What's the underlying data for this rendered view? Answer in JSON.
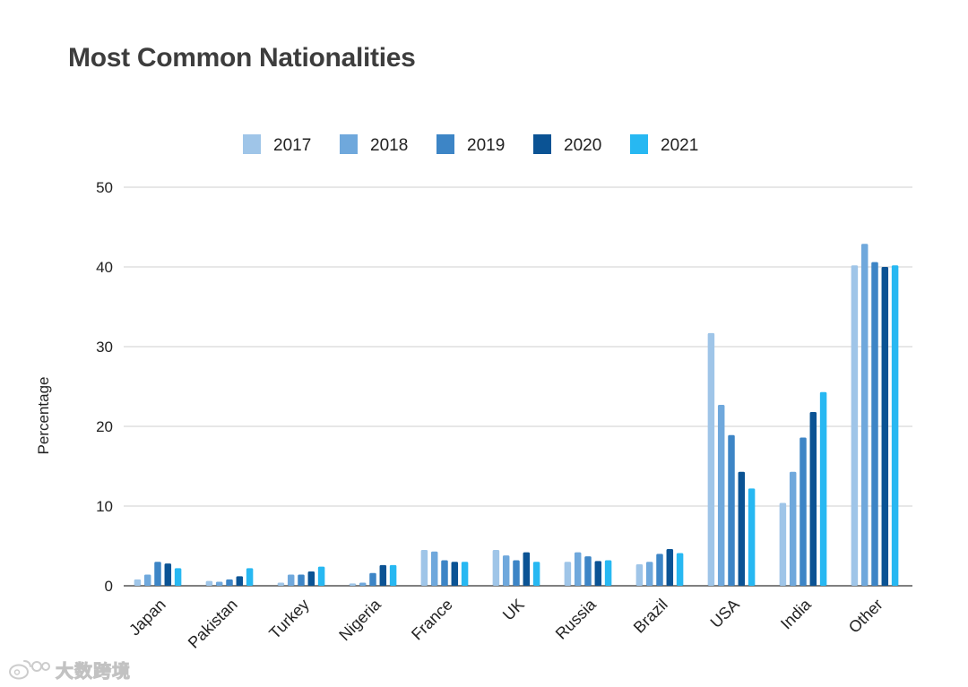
{
  "chart_data": {
    "type": "bar",
    "title": "Most Common Nationalities",
    "xlabel": "",
    "ylabel": "Percentage",
    "ylim": [
      0,
      50
    ],
    "yticks": [
      0,
      10,
      20,
      30,
      40,
      50
    ],
    "grid": true,
    "legend_position": "top-center",
    "categories": [
      "Japan",
      "Pakistan",
      "Turkey",
      "Nigeria",
      "France",
      "UK",
      "Russia",
      "Brazil",
      "USA",
      "India",
      "Other"
    ],
    "series": [
      {
        "name": "2017",
        "color": "#9fc5e8",
        "values": [
          0.8,
          0.6,
          0.4,
          0.3,
          4.5,
          4.5,
          3.0,
          2.7,
          31.7,
          10.4,
          40.2
        ]
      },
      {
        "name": "2018",
        "color": "#6fa8dc",
        "values": [
          1.4,
          0.5,
          1.4,
          0.4,
          4.3,
          3.8,
          4.2,
          3.0,
          22.7,
          14.3,
          42.9
        ]
      },
      {
        "name": "2019",
        "color": "#3d85c6",
        "values": [
          3.0,
          0.8,
          1.4,
          1.6,
          3.2,
          3.2,
          3.7,
          4.0,
          18.9,
          18.6,
          40.6
        ]
      },
      {
        "name": "2020",
        "color": "#0b5394",
        "values": [
          2.8,
          1.2,
          1.8,
          2.6,
          3.0,
          4.2,
          3.1,
          4.6,
          14.3,
          21.8,
          40.0
        ]
      },
      {
        "name": "2021",
        "color": "#27b8f2",
        "values": [
          2.2,
          2.2,
          2.4,
          2.6,
          3.0,
          3.0,
          3.2,
          4.1,
          12.2,
          24.3,
          40.2
        ]
      }
    ]
  },
  "watermark": {
    "text": "大数跨境",
    "icon": "weibo-logo-icon"
  }
}
